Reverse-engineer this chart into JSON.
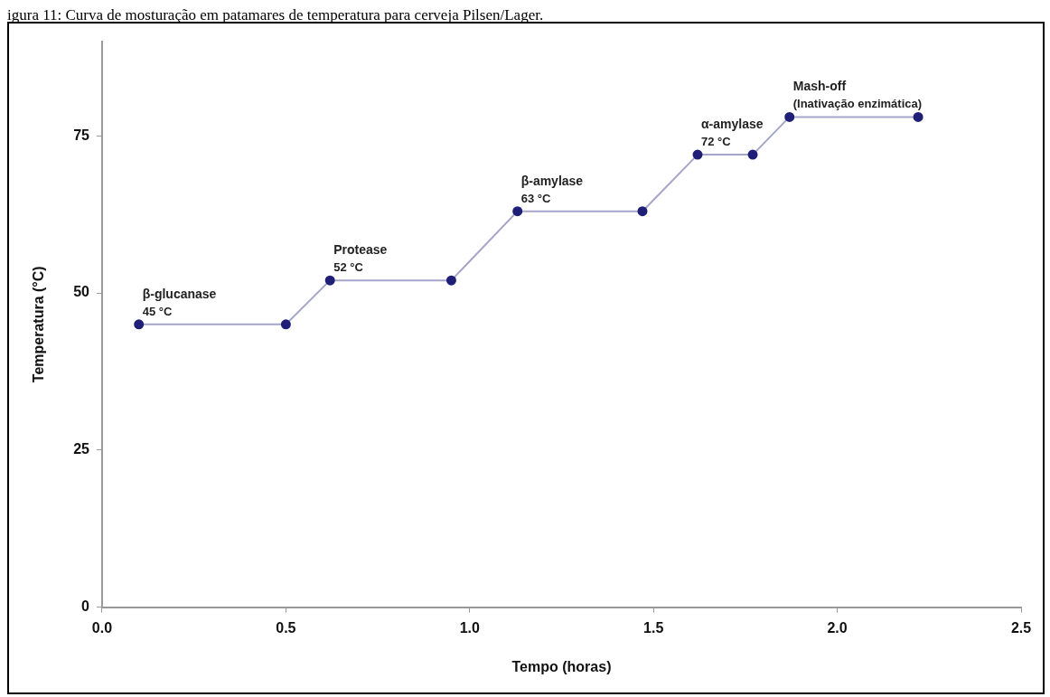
{
  "chart_data": {
    "type": "line",
    "title": "igura 11: Curva de mosturação em patamares de temperatura para cerveja Pilsen/Lager.",
    "xlabel": "Tempo (horas)",
    "ylabel": "Temperatura (°C)",
    "x": [
      0.1,
      0.5,
      0.62,
      0.95,
      1.13,
      1.47,
      1.62,
      1.77,
      1.87,
      2.22
    ],
    "series": [
      {
        "color": "#1f1f78",
        "values": [
          45,
          45,
          52,
          52,
          63,
          63,
          72,
          72,
          78,
          78
        ]
      }
    ],
    "xlim": [
      0,
      2.5
    ],
    "xticks": [
      {
        "value": 0,
        "label": "0.0"
      },
      {
        "value": 0.5,
        "label": "0.5"
      },
      {
        "value": 1,
        "label": "1.0"
      },
      {
        "value": 1.5,
        "label": "1.5"
      },
      {
        "value": 2,
        "label": "2.0"
      },
      {
        "value": 2.5,
        "label": "2.5"
      }
    ],
    "ylim": [
      0,
      90
    ],
    "yticks": [
      0,
      25,
      50,
      75
    ],
    "grid": false,
    "legend": false,
    "marker": "circle",
    "line_style": "solid",
    "annotations": [
      {
        "text": "β-glucanase\n45 °C",
        "x": 0.1,
        "y": 45
      },
      {
        "text": "Protease\n52 °C",
        "x": 0.62,
        "y": 52
      },
      {
        "text": "β-amylase\n63 °C",
        "x": 1.13,
        "y": 63
      },
      {
        "text": "α-amylase\n72 °C",
        "x": 1.62,
        "y": 72
      },
      {
        "text": "Mash-off\n(Inativação enzimática)",
        "x": 1.87,
        "y": 78
      }
    ]
  }
}
